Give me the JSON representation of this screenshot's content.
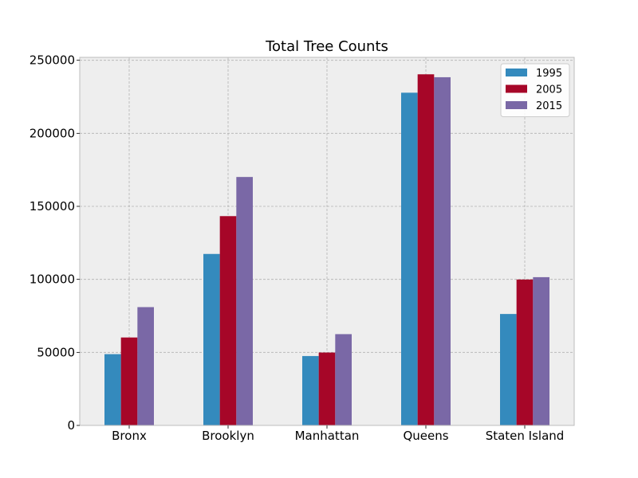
{
  "chart_data": {
    "type": "bar",
    "title": "Total Tree Counts",
    "xlabel": "",
    "ylabel": "",
    "categories": [
      "Bronx",
      "Brooklyn",
      "Manhattan",
      "Queens",
      "Staten Island"
    ],
    "series": [
      {
        "name": "1995",
        "color": "#348abd",
        "values": [
          48800,
          117400,
          47500,
          227800,
          76300
        ]
      },
      {
        "name": "2005",
        "color": "#a60628",
        "values": [
          60200,
          143300,
          49900,
          240400,
          99900
        ]
      },
      {
        "name": "2015",
        "color": "#7a68a6",
        "values": [
          81000,
          170100,
          62500,
          238400,
          101500
        ]
      }
    ],
    "ylim": [
      0,
      252000
    ],
    "yticks": [
      0,
      50000,
      100000,
      150000,
      200000,
      250000
    ],
    "ytick_labels": [
      "0",
      "50000",
      "100000",
      "150000",
      "200000",
      "250000"
    ],
    "grid": true,
    "legend_position": "top-right",
    "background_color": "#eeeeee",
    "grid_color": "#b2b2b2"
  }
}
